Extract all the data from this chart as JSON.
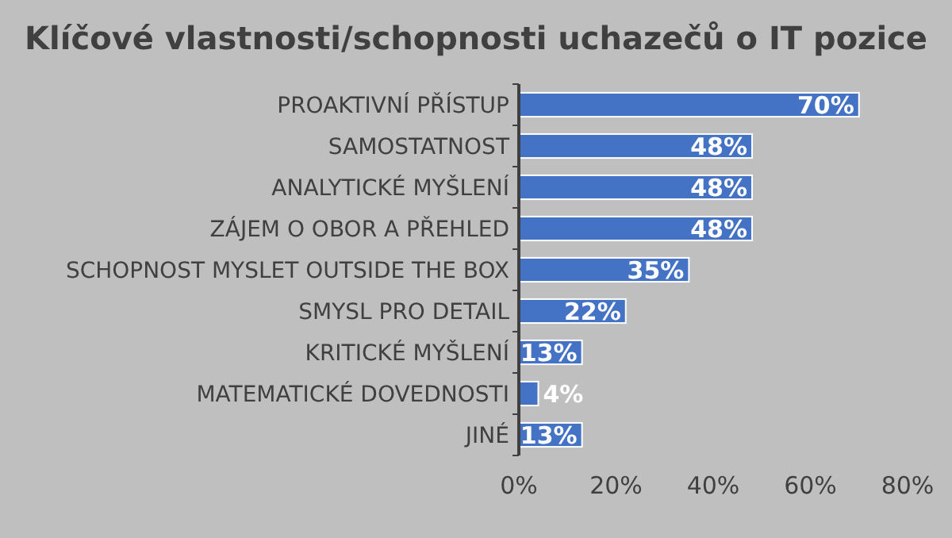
{
  "chart_data": {
    "type": "bar",
    "orientation": "horizontal",
    "title": "Klíčové vlastnosti/schopnosti uchazečů o IT pozice",
    "categories": [
      "PROAKTIVNÍ PŘÍSTUP",
      "SAMOSTATNOST",
      "ANALYTICKÉ MYŠLENÍ",
      "ZÁJEM O OBOR A PŘEHLED",
      "SCHOPNOST MYSLET OUTSIDE THE BOX",
      "SMYSL PRO DETAIL",
      "KRITICKÉ MYŠLENÍ",
      "MATEMATICKÉ DOVEDNOSTI",
      "JINÉ"
    ],
    "values": [
      70,
      48,
      48,
      48,
      35,
      22,
      13,
      4,
      13
    ],
    "value_labels": [
      "70%",
      "48%",
      "48%",
      "48%",
      "35%",
      "22%",
      "13%",
      "4%",
      "13%"
    ],
    "color": "#4472c4",
    "xlim": [
      0,
      80
    ],
    "xticks": [
      {
        "value": 0,
        "label": "0%"
      },
      {
        "value": 20,
        "label": "20%"
      },
      {
        "value": 40,
        "label": "40%"
      },
      {
        "value": 60,
        "label": "60%"
      },
      {
        "value": 80,
        "label": "80%"
      }
    ],
    "grid": false
  }
}
